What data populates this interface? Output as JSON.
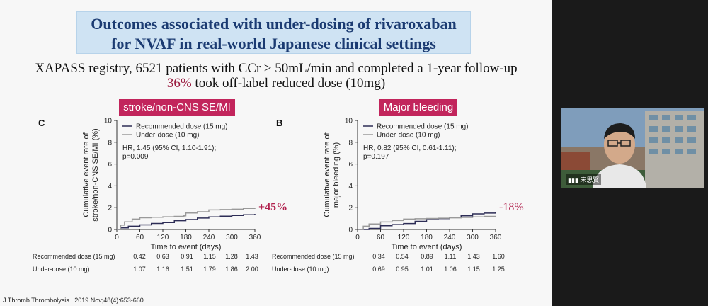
{
  "slide": {
    "title_line_1": "Outcomes associated with under-dosing of rivaroxaban",
    "title_line_2": "for NVAF in real-world Japanese clinical settings",
    "subtitle_line_1": "XAPASS registry, 6521 patients with CCr ≥ 50mL/min and completed a 1-year follow-up",
    "subtitle_line_2_pct": "36%",
    "subtitle_line_2_rest": " took off-label reduced dose (10mg)",
    "citation": "J Thromb Thrombolysis . 2019 Nov;48(4):653-660.",
    "colors": {
      "title_bg": "#cfe3f3",
      "title_text": "#1b3b72",
      "tag_bg": "#c2255c",
      "accent": "#9b1c40"
    }
  },
  "panel_stroke": {
    "tag": "stroke/non-CNS SE/MI",
    "letter": "C",
    "change": "+45%",
    "table": {
      "rows": [
        {
          "label": "Recommended dose (15 mg)",
          "values": [
            "0.42",
            "0.63",
            "0.91",
            "1.15",
            "1.28",
            "1.43"
          ]
        },
        {
          "label": "Under-dose (10 mg)",
          "values": [
            "1.07",
            "1.16",
            "1.51",
            "1.79",
            "1.86",
            "2.00"
          ]
        }
      ]
    }
  },
  "panel_bleed": {
    "tag": "Major bleeding",
    "letter": "B",
    "change": "-18%",
    "table": {
      "rows": [
        {
          "label": "Recommended dose (15 mg)",
          "values": [
            "0.34",
            "0.54",
            "0.89",
            "1.11",
            "1.43",
            "1.60"
          ]
        },
        {
          "label": "Under-dose (10 mg)",
          "values": [
            "0.69",
            "0.95",
            "1.01",
            "1.06",
            "1.15",
            "1.25"
          ]
        }
      ]
    }
  },
  "chart_data": [
    {
      "type": "line",
      "xlabel": "Time to event (days)",
      "ylabel": "Cumulative event rate of stroke/non-CNS SE/MI (%)",
      "xlim": [
        0,
        360
      ],
      "ylim": [
        0,
        10
      ],
      "xticks": [
        0,
        60,
        120,
        180,
        240,
        300,
        360
      ],
      "yticks": [
        0,
        2,
        4,
        6,
        8,
        10
      ],
      "legend_position": "top-left",
      "annotation": "HR, 1.45 (95% CI, 1.10-1.91);\np=0.009",
      "series": [
        {
          "name": "Recommended dose (15 mg)",
          "color": "#2d2d56",
          "x": [
            0,
            10,
            30,
            60,
            90,
            120,
            150,
            180,
            210,
            240,
            270,
            300,
            330,
            360
          ],
          "y": [
            0,
            0.15,
            0.3,
            0.42,
            0.55,
            0.63,
            0.8,
            0.91,
            1.05,
            1.15,
            1.22,
            1.28,
            1.35,
            1.43
          ]
        },
        {
          "name": "Under-dose (10 mg)",
          "color": "#9a9a9a",
          "x": [
            0,
            10,
            20,
            40,
            60,
            90,
            120,
            150,
            175,
            180,
            210,
            240,
            270,
            300,
            330,
            360
          ],
          "y": [
            0,
            0.4,
            0.7,
            0.95,
            1.07,
            1.12,
            1.16,
            1.2,
            1.25,
            1.51,
            1.62,
            1.79,
            1.83,
            1.86,
            1.93,
            2.0
          ]
        }
      ]
    },
    {
      "type": "line",
      "xlabel": "Time to event (days)",
      "ylabel": "Cumulative event rate of major bleeding (%)",
      "xlim": [
        0,
        360
      ],
      "ylim": [
        0,
        10
      ],
      "xticks": [
        0,
        60,
        120,
        180,
        240,
        300,
        360
      ],
      "yticks": [
        0,
        2,
        4,
        6,
        8,
        10
      ],
      "legend_position": "top-left",
      "annotation": "HR, 0.82 (95% CI, 0.61-1.11);\np=0.197",
      "series": [
        {
          "name": "Recommended dose (15 mg)",
          "color": "#2d2d56",
          "x": [
            0,
            30,
            60,
            90,
            120,
            150,
            180,
            210,
            240,
            270,
            300,
            330,
            360
          ],
          "y": [
            0,
            0.1,
            0.34,
            0.45,
            0.54,
            0.75,
            0.89,
            1.0,
            1.11,
            1.25,
            1.43,
            1.5,
            1.6
          ]
        },
        {
          "name": "Under-dose (10 mg)",
          "color": "#9a9a9a",
          "x": [
            0,
            15,
            30,
            60,
            90,
            120,
            150,
            180,
            210,
            240,
            270,
            300,
            330,
            360
          ],
          "y": [
            0,
            0.3,
            0.5,
            0.69,
            0.82,
            0.95,
            0.98,
            1.01,
            1.03,
            1.06,
            1.1,
            1.15,
            1.2,
            1.25
          ]
        }
      ]
    }
  ],
  "video": {
    "participant_name": "宋思賢",
    "signal_icon": "signal-bars-icon"
  }
}
